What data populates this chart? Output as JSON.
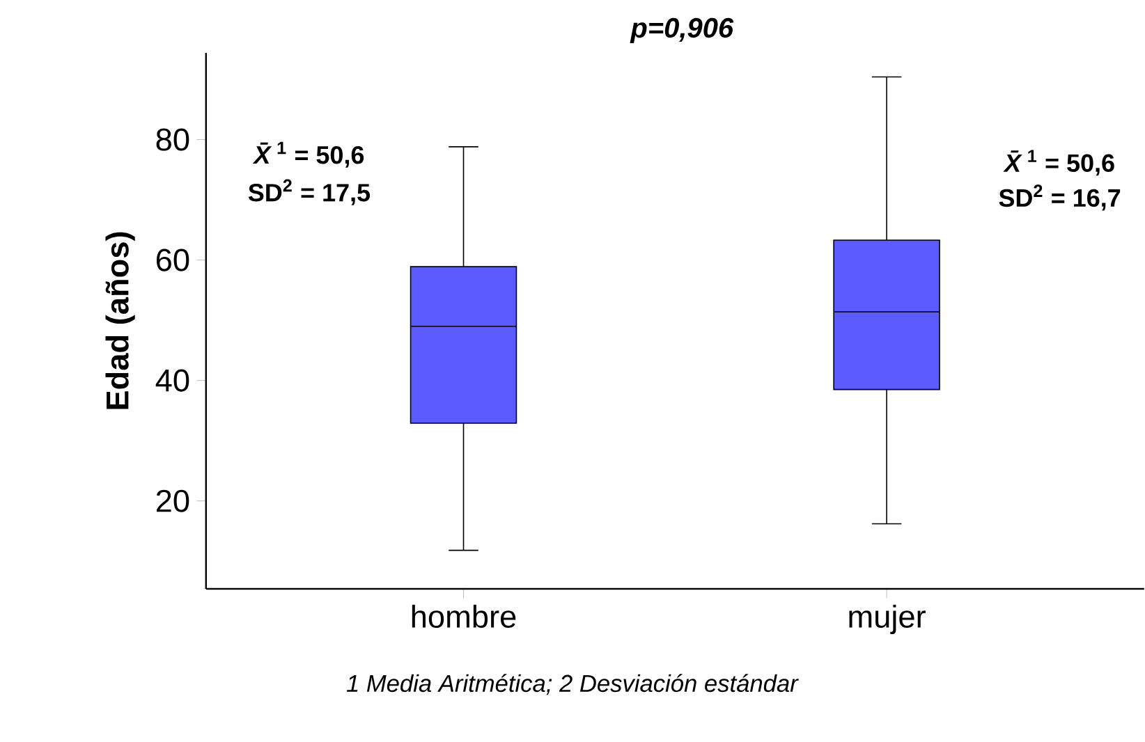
{
  "chart_data": {
    "type": "box",
    "title": "p=0,906",
    "ylabel": "Edad  (años)",
    "categories": [
      "hombre",
      "mujer"
    ],
    "boxes": [
      {
        "low": 11.8,
        "q1": 32.9,
        "median": 49.0,
        "q3": 58.9,
        "high": 78.8
      },
      {
        "low": 16.2,
        "q1": 38.5,
        "median": 51.4,
        "q3": 63.3,
        "high": 90.4
      }
    ],
    "color": "#5b5bff",
    "ylim": [
      5.4,
      94.4
    ],
    "yticks": [
      20,
      40,
      60,
      80
    ],
    "grid": false,
    "annotations": [
      "*X̄*$^{1}$ = 50,6",
      "SD$^{2}$ = 17,5",
      "*X̄*$^{1}$ = 50,6",
      "SD$^{2}$ = 16,7",
      "1 Media Aritmética;    2 Desviación estándar"
    ]
  }
}
